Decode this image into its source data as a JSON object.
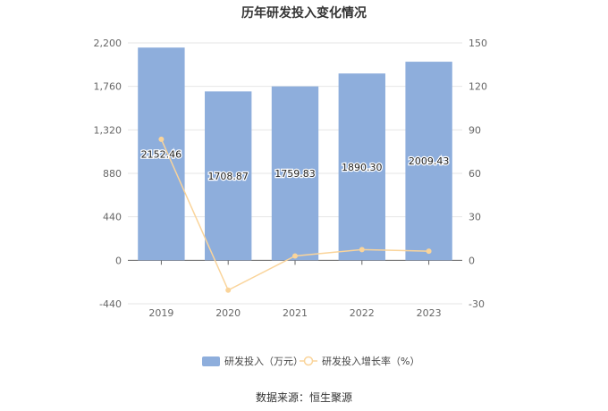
{
  "chart_data": {
    "type": "bar+line",
    "title": "历年研发投入变化情况",
    "categories": [
      "2019",
      "2020",
      "2021",
      "2022",
      "2023"
    ],
    "series": [
      {
        "name": "研发投入（万元）",
        "type": "bar",
        "axis": "left",
        "values": [
          2152.46,
          1708.87,
          1759.83,
          1890.3,
          2009.43
        ],
        "labels": [
          "2152.46",
          "1708.87",
          "1759.83",
          "1890.30",
          "2009.43"
        ],
        "color": "#8eaedc"
      },
      {
        "name": "研发投入增长率（%）",
        "type": "line",
        "axis": "right",
        "values": [
          83.5,
          -20.6,
          3.0,
          7.4,
          6.3
        ],
        "color": "#fad49a"
      }
    ],
    "y_left": {
      "min": -440,
      "max": 2200,
      "ticks": [
        "-440",
        "0",
        "440",
        "880",
        "1,320",
        "1,760",
        "2,200"
      ]
    },
    "y_right": {
      "min": -30,
      "max": 150,
      "ticks": [
        "-30",
        "0",
        "30",
        "60",
        "90",
        "120",
        "150"
      ]
    },
    "grid": true,
    "legend_position": "bottom"
  },
  "source": "数据来源：恒生聚源"
}
